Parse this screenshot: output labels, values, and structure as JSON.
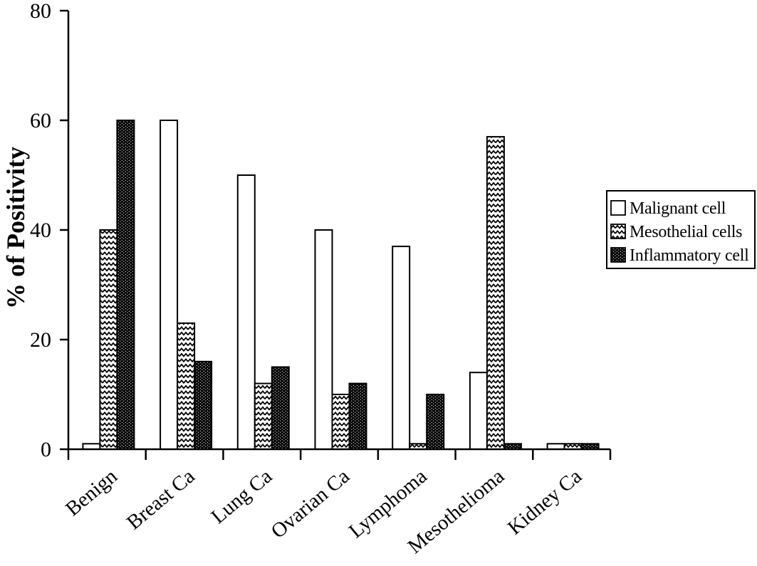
{
  "figure": {
    "background": "#ffffff"
  },
  "chart_data": {
    "type": "bar",
    "title": "",
    "xlabel": "",
    "ylabel": "% of Positivity",
    "ylim": [
      0,
      80
    ],
    "yticks": [
      0,
      20,
      40,
      60,
      80
    ],
    "grid": false,
    "legend_position": "right",
    "categories": [
      "Benign",
      "Breast Ca",
      "Lung Ca",
      "Ovarian Ca",
      "Lymphoma",
      "Mesothelioma",
      "Kidney Ca"
    ],
    "series": [
      {
        "name": "Malignant cell",
        "style": "white",
        "values": [
          1,
          60,
          50,
          40,
          37,
          14,
          1
        ]
      },
      {
        "name": "Mesothelial cells",
        "style": "zigzag",
        "values": [
          40,
          23,
          12,
          10,
          1,
          57,
          1
        ]
      },
      {
        "name": "Inflammatory cell",
        "style": "dots",
        "values": [
          60,
          16,
          15,
          12,
          10,
          1,
          1
        ]
      }
    ],
    "colors": {
      "stroke": "#000000",
      "fill_white": "#ffffff",
      "fill_dark": "#000000"
    }
  }
}
